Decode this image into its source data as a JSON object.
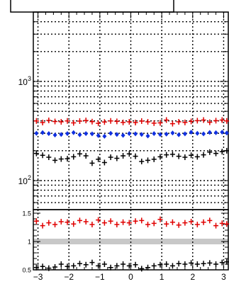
{
  "chart_data": [
    {
      "type": "scatter",
      "panel": "main",
      "title": "",
      "xlabel": "",
      "ylabel": "",
      "y_scale": "log",
      "ylim": [
        60,
        3000
      ],
      "xlim": [
        -3.15,
        3.15
      ],
      "grid": true,
      "y_ticks": [
        {
          "value": 1000,
          "base": "10",
          "exp": "3"
        },
        {
          "value": 100,
          "base": "10",
          "exp": "2"
        }
      ],
      "x": [
        -3.05,
        -2.85,
        -2.65,
        -2.45,
        -2.25,
        -2.05,
        -1.85,
        -1.65,
        -1.45,
        -1.25,
        -1.05,
        -0.85,
        -0.65,
        -0.45,
        -0.25,
        -0.05,
        0.15,
        0.35,
        0.55,
        0.75,
        0.95,
        1.15,
        1.35,
        1.55,
        1.75,
        1.95,
        2.15,
        2.35,
        2.55,
        2.75,
        2.95,
        3.1
      ],
      "series": [
        {
          "color": "#e00000",
          "marker": "cross",
          "values": [
            400,
            385,
            405,
            395,
            392,
            400,
            382,
            398,
            404,
            393,
            378,
            390,
            400,
            396,
            386,
            392,
            385,
            398,
            392,
            380,
            382,
            408,
            375,
            392,
            386,
            396,
            402,
            408,
            388,
            402,
            408,
            400
          ]
        },
        {
          "color": "#1030e0",
          "marker": "diamond",
          "values": [
            300,
            305,
            298,
            288,
            292,
            298,
            305,
            290,
            298,
            296,
            285,
            280,
            300,
            292,
            286,
            298,
            296,
            292,
            282,
            298,
            292,
            294,
            302,
            290,
            296,
            308,
            300,
            296,
            306,
            304,
            308,
            302
          ]
        },
        {
          "color": "#000000",
          "marker": "cross",
          "values": [
            188,
            180,
            172,
            160,
            165,
            166,
            174,
            186,
            178,
            150,
            164,
            152,
            172,
            168,
            178,
            186,
            176,
            156,
            160,
            164,
            174,
            182,
            184,
            176,
            172,
            180,
            174,
            182,
            194,
            188,
            196,
            200
          ]
        }
      ]
    },
    {
      "type": "scatter",
      "panel": "ratio",
      "title": "",
      "xlabel": "",
      "ylabel": "",
      "ylim": [
        0.5,
        1.5
      ],
      "xlim": [
        -3.15,
        3.15
      ],
      "grid": true,
      "band": [
        0.95,
        1.05
      ],
      "y_tick_labels": [
        {
          "value": 1.5,
          "label": "1.5"
        },
        {
          "value": 1.0,
          "label": "1"
        },
        {
          "value": 0.5,
          "label": "0.5"
        }
      ],
      "x_tick_labels": [
        {
          "value": -3,
          "label": "−3"
        },
        {
          "value": -2,
          "label": "−2"
        },
        {
          "value": -1,
          "label": "−1"
        },
        {
          "value": 0,
          "label": "0"
        },
        {
          "value": 1,
          "label": "1"
        },
        {
          "value": 2,
          "label": "2"
        },
        {
          "value": 3,
          "label": "3"
        }
      ],
      "x": [
        -3.05,
        -2.85,
        -2.65,
        -2.45,
        -2.25,
        -2.05,
        -1.85,
        -1.65,
        -1.45,
        -1.25,
        -1.05,
        -0.85,
        -0.65,
        -0.45,
        -0.25,
        -0.05,
        0.15,
        0.35,
        0.55,
        0.75,
        0.95,
        1.15,
        1.35,
        1.55,
        1.75,
        1.95,
        2.15,
        2.35,
        2.55,
        2.75,
        2.95,
        3.1
      ],
      "series": [
        {
          "color": "#e00000",
          "marker": "cross",
          "values": [
            1.36,
            1.28,
            1.33,
            1.3,
            1.35,
            1.34,
            1.31,
            1.37,
            1.35,
            1.3,
            1.38,
            1.33,
            1.36,
            1.3,
            1.34,
            1.33,
            1.36,
            1.37,
            1.3,
            1.32,
            1.39,
            1.31,
            1.34,
            1.29,
            1.33,
            1.35,
            1.3,
            1.34,
            1.37,
            1.28,
            1.32,
            1.31
          ]
        },
        {
          "color": "#000000",
          "marker": "cross",
          "values": [
            0.54,
            0.56,
            0.53,
            0.55,
            0.6,
            0.56,
            0.57,
            0.61,
            0.59,
            0.63,
            0.57,
            0.6,
            0.54,
            0.57,
            0.6,
            0.57,
            0.59,
            0.52,
            0.54,
            0.57,
            0.59,
            0.6,
            0.57,
            0.61,
            0.6,
            0.62,
            0.6,
            0.61,
            0.62,
            0.6,
            0.63,
            0.64
          ]
        }
      ]
    }
  ]
}
